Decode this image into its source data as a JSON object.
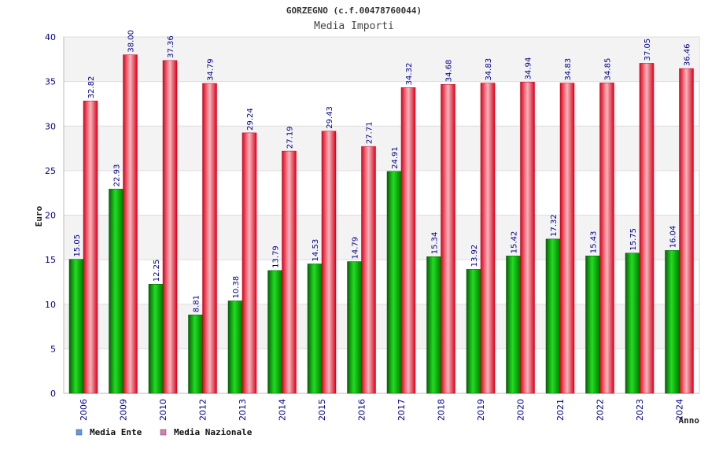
{
  "chart_data": {
    "type": "bar",
    "title": "GORZEGNO (c.f.00478760044)",
    "subtitle": "Media Importi",
    "xlabel": "Anno",
    "ylabel": "Euro",
    "ylim": [
      0,
      40
    ],
    "yticks": [
      "0",
      "5",
      "10",
      "15",
      "20",
      "25",
      "30",
      "35",
      "40"
    ],
    "grid": true,
    "legend_position": "bottom-left",
    "categories": [
      "2006",
      "2009",
      "2010",
      "2012",
      "2013",
      "2014",
      "2015",
      "2016",
      "2017",
      "2018",
      "2019",
      "2020",
      "2021",
      "2022",
      "2023",
      "2024"
    ],
    "series": [
      {
        "name": "Media Ente",
        "color": "#00aa00",
        "legend_color": "#5a9be6",
        "values": [
          15.05,
          22.93,
          12.25,
          8.81,
          10.38,
          13.79,
          14.53,
          14.79,
          24.91,
          15.34,
          13.92,
          15.42,
          17.32,
          15.43,
          15.75,
          16.04
        ],
        "labels": [
          "15.05",
          "22.93",
          "12.25",
          "8.81",
          "10.38",
          "13.79",
          "14.53",
          "14.79",
          "24.91",
          "15.34",
          "13.92",
          "15.42",
          "17.32",
          "15.43",
          "15.75",
          "16.04"
        ]
      },
      {
        "name": "Media Nazionale",
        "color": "#e8232a",
        "legend_color": "#e07ab4",
        "values": [
          32.82,
          38.0,
          37.36,
          34.79,
          29.24,
          27.19,
          29.43,
          27.71,
          34.32,
          34.68,
          34.83,
          34.94,
          34.83,
          34.85,
          37.05,
          36.46
        ],
        "labels": [
          "32.82",
          "38.00",
          "37.36",
          "34.79",
          "29.24",
          "27.19",
          "29.43",
          "27.71",
          "34.32",
          "34.68",
          "34.83",
          "34.94",
          "34.83",
          "34.85",
          "37.05",
          "36.46"
        ]
      }
    ]
  }
}
